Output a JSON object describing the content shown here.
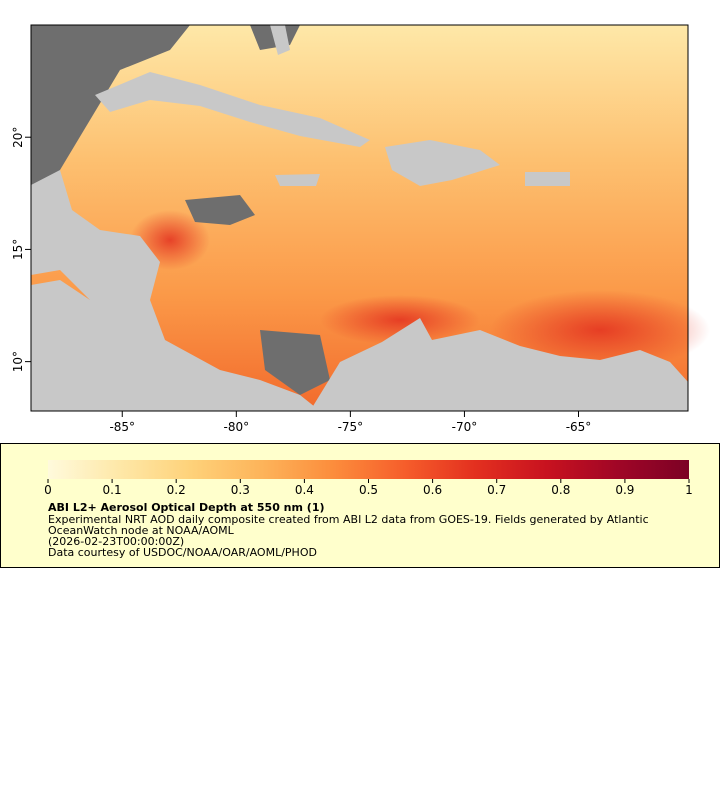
{
  "map": {
    "xlim": [
      -89,
      -60.2
    ],
    "ylim": [
      7.8,
      25
    ],
    "xticks": [
      {
        "value": -85,
        "label": "-85°"
      },
      {
        "value": -80,
        "label": "-80°"
      },
      {
        "value": -75,
        "label": "-75°"
      },
      {
        "value": -70,
        "label": "-70°"
      },
      {
        "value": -65,
        "label": "-65°"
      }
    ],
    "yticks": [
      {
        "value": 10,
        "label": "10°"
      },
      {
        "value": 15,
        "label": "15°"
      },
      {
        "value": 20,
        "label": "20°"
      }
    ]
  },
  "colorbar": {
    "range": [
      0,
      1
    ],
    "ticks": [
      0,
      0.1,
      0.2,
      0.3,
      0.4,
      0.5,
      0.6,
      0.7,
      0.8,
      0.9,
      1
    ],
    "palette": [
      "#fffadc",
      "#fee8a8",
      "#fed27a",
      "#fdb45a",
      "#fc8d3c",
      "#f65e2b",
      "#e3301f",
      "#c8121f",
      "#a00626",
      "#7c0125"
    ]
  },
  "legend": {
    "title": "ABI L2+ Aerosol Optical Depth at 550 nm (1)",
    "lines": [
      "Experimental NRT AOD daily composite created from ABI L2 data from GOES-19. Fields generated by Atlantic OceanWatch node at NOAA/AOML",
      "(2026-02-23T00:00:00Z)",
      "Data courtesy of USDOC/NOAA/OAR/AOML/PHOD"
    ]
  }
}
